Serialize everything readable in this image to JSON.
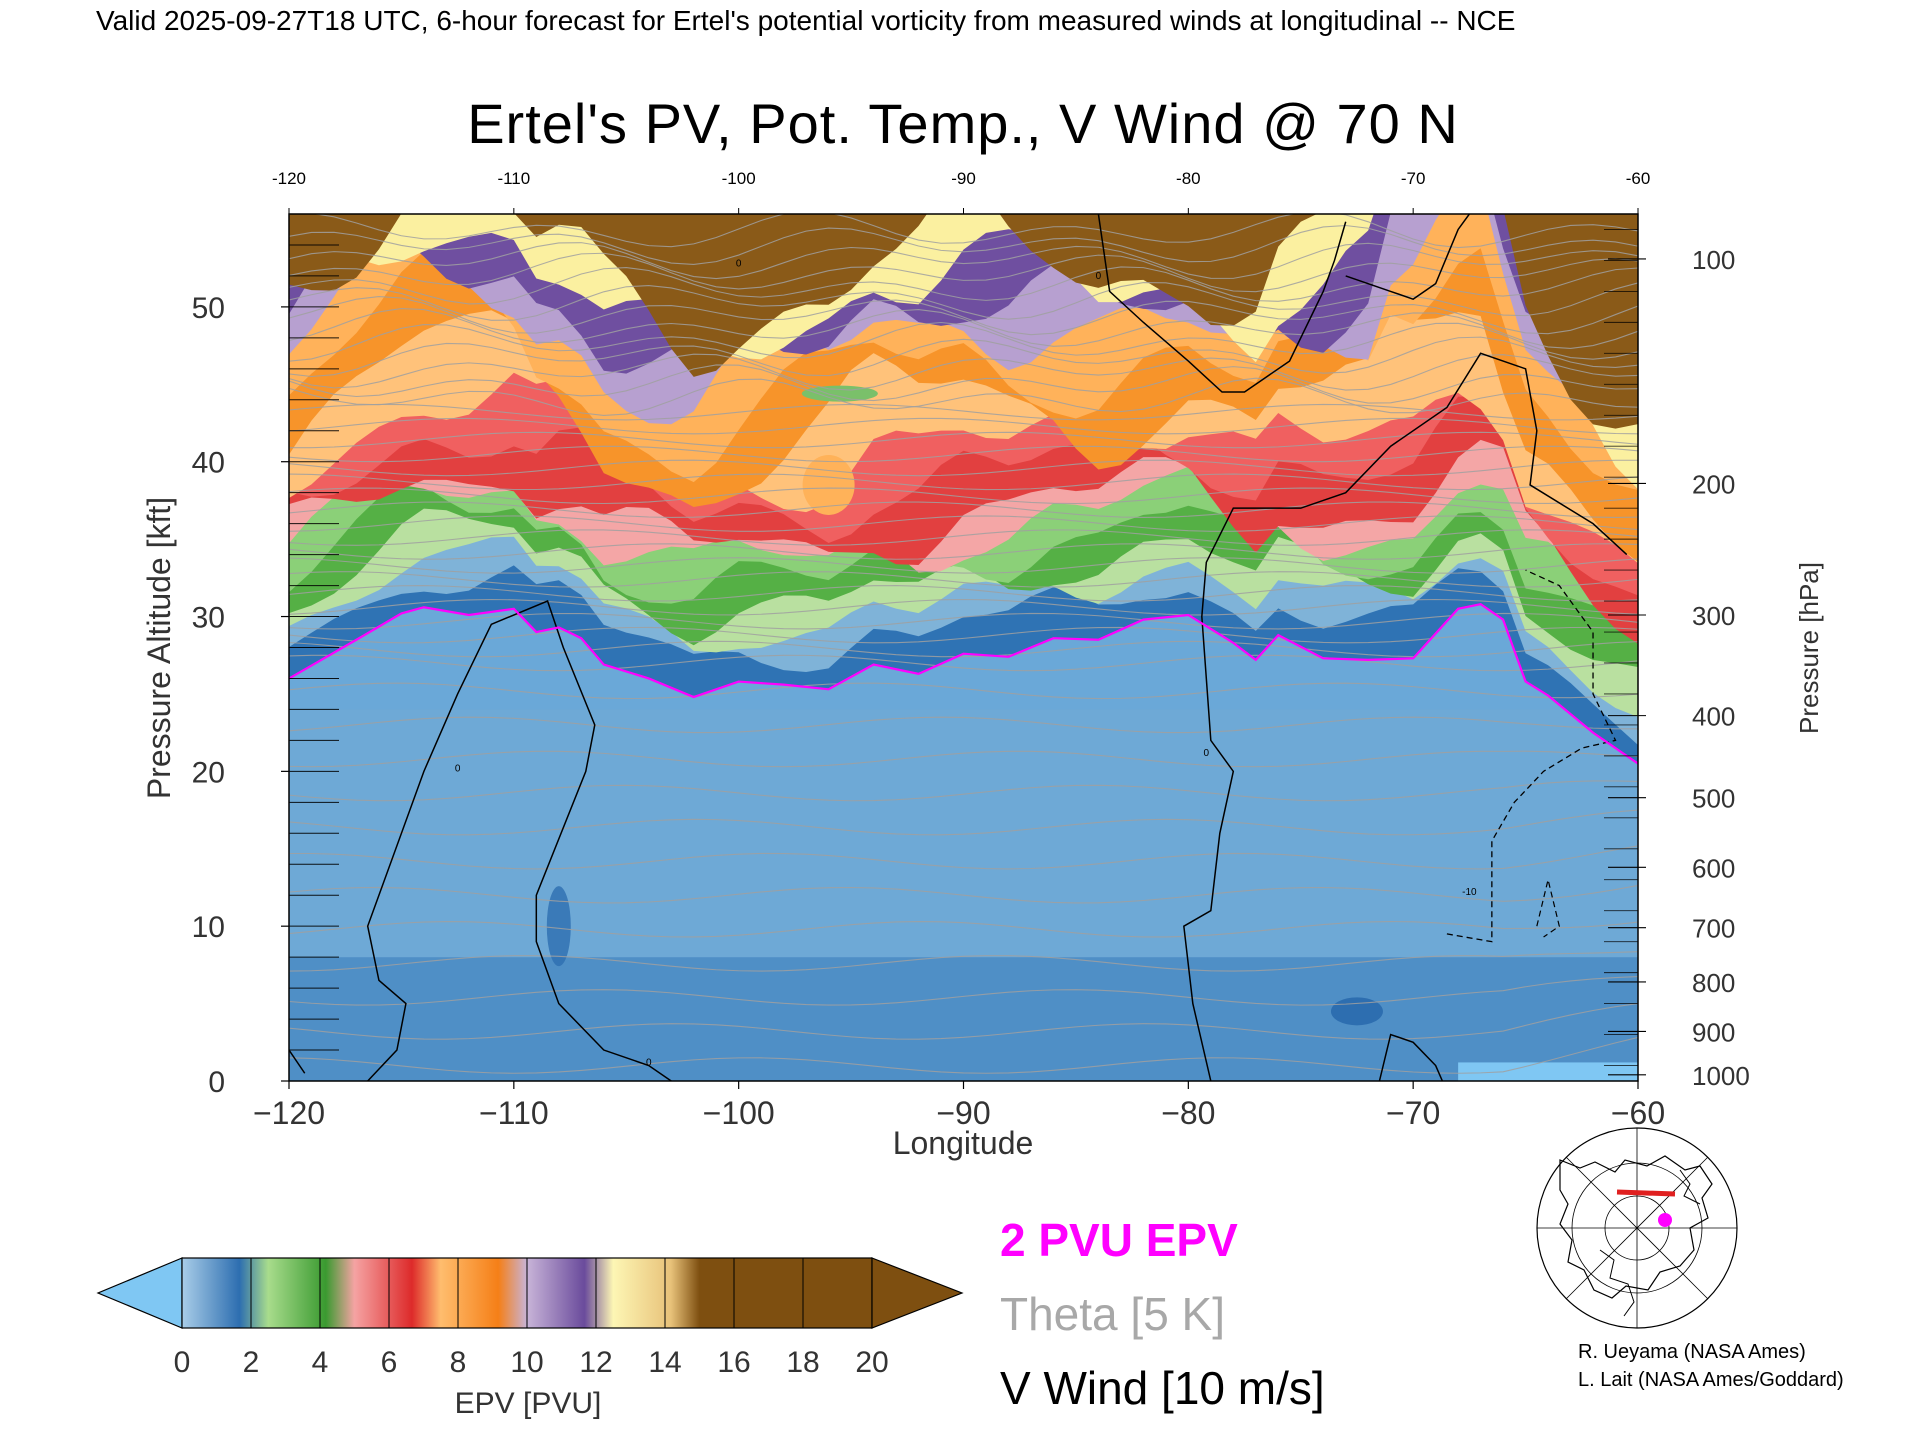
{
  "header": {
    "caption": "Valid 2025-09-27T18 UTC, 6-hour forecast for Ertel's potential vorticity from measured winds at longitudinal -- NCE"
  },
  "chart_data": {
    "type": "heatmap",
    "title": "Ertel's PV, Pot. Temp., V Wind @ 70 N",
    "xlabel": "Longitude",
    "ylabel_left": "Pressure Altitude [kft]",
    "ylabel_right": "Pressure [hPa]",
    "xlim": [
      -120,
      -60
    ],
    "ylim": [
      0,
      56
    ],
    "x_ticks": [
      -120,
      -110,
      -100,
      -90,
      -80,
      -70,
      -60
    ],
    "x_tick_labels": [
      "−120",
      "−110",
      "−100",
      "−90",
      "−80",
      "−70",
      "−60"
    ],
    "top_tick_labels": [
      "-120",
      "-110",
      "-100",
      "-90",
      "-80",
      "-70",
      "-60"
    ],
    "y_ticks_left": [
      0,
      10,
      20,
      30,
      40,
      50
    ],
    "pressure_ticks": [
      {
        "p": 100,
        "alt_kft": 53.1
      },
      {
        "p": 200,
        "alt_kft": 38.6
      },
      {
        "p": 300,
        "alt_kft": 30.1
      },
      {
        "p": 400,
        "alt_kft": 23.6
      },
      {
        "p": 500,
        "alt_kft": 18.3
      },
      {
        "p": 600,
        "alt_kft": 13.8
      },
      {
        "p": 700,
        "alt_kft": 9.9
      },
      {
        "p": 800,
        "alt_kft": 6.4
      },
      {
        "p": 900,
        "alt_kft": 3.2
      },
      {
        "p": 1000,
        "alt_kft": 0.4
      }
    ],
    "pv_2pvu_line": {
      "name": "2 PVU EPV",
      "color": "#ff00ff",
      "lon": [
        -120,
        -117,
        -115,
        -114,
        -112,
        -110,
        -109,
        -108,
        -107,
        -106,
        -104,
        -102,
        -100,
        -98,
        -96,
        -94,
        -92,
        -90,
        -88,
        -86,
        -84,
        -82,
        -80,
        -78,
        -77,
        -76,
        -74,
        -72,
        -70,
        -68,
        -67,
        -66,
        -65,
        -64,
        -62,
        -60
      ],
      "alt": [
        26,
        28.5,
        30.2,
        30.6,
        30.1,
        30.5,
        29.0,
        29.3,
        28.6,
        26.9,
        26.0,
        24.8,
        25.8,
        25.6,
        25.3,
        26.9,
        26.3,
        27.6,
        27.4,
        28.6,
        28.5,
        29.8,
        30.1,
        28.3,
        27.2,
        28.8,
        27.3,
        27.2,
        27.3,
        30.5,
        30.8,
        29.8,
        25.8,
        24.9,
        22.5,
        20.5
      ]
    },
    "theta_lines": {
      "name": "Theta [5 K]",
      "color": "#a0a0a0",
      "interval_K": 5
    },
    "v_wind_lines": {
      "name": "V Wind [10 m/s]",
      "color": "#000000",
      "interval_ms": 10,
      "labels": [
        "0",
        "0",
        "0",
        "0",
        "0",
        "-10"
      ]
    },
    "colorbar": {
      "label": "EPV [PVU]",
      "ticks": [
        "0",
        "2",
        "4",
        "6",
        "8",
        "10",
        "12",
        "14",
        "16",
        "18",
        "20"
      ],
      "colors": [
        "#77aad8",
        "#2d6eb0",
        "#a8dc8c",
        "#3a9a30",
        "#f08f8f",
        "#dd2a2a",
        "#ffb259",
        "#f57f17",
        "#b99fcc",
        "#6a4b9c",
        "#f7e99a",
        "#7e4f10"
      ],
      "under_color": "#7fc7f3",
      "over_color": "#7e4f10"
    },
    "grid": false,
    "legend": "bottom-center"
  },
  "legend": {
    "pv": "2 PVU EPV",
    "theta": "Theta [5 K]",
    "vwind": "V Wind [10 m/s]",
    "pv_color": "#ff00ff",
    "theta_color": "#a8a8a8",
    "vwind_color": "#000000"
  },
  "map_inset": {
    "marker_color": "#ff00ff",
    "path_color": "#e02020"
  },
  "credits": {
    "line1": "R. Ueyama (NASA Ames)",
    "line2": "L. Lait (NASA Ames/Goddard)"
  }
}
